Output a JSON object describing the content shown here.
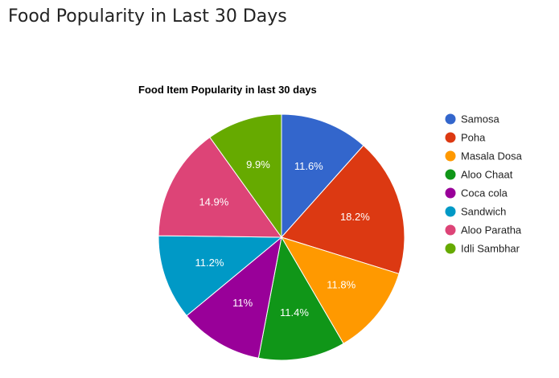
{
  "page": {
    "title": "Food Popularity in Last 30 Days"
  },
  "chart_data": {
    "type": "pie",
    "title": "Food Item Popularity in last 30 days",
    "legend_position": "right",
    "categories": [
      "Samosa",
      "Poha",
      "Masala Dosa",
      "Aloo Chaat",
      "Coca cola",
      "Sandwich",
      "Aloo Paratha",
      "Idli Sambhar"
    ],
    "values": [
      11.6,
      18.2,
      11.8,
      11.4,
      11,
      11.2,
      14.9,
      9.9
    ],
    "labels": [
      "11.6%",
      "18.2%",
      "11.8%",
      "11.4%",
      "11%",
      "11.2%",
      "14.9%",
      "9.9%"
    ],
    "colors": [
      "#3366cc",
      "#dc3912",
      "#ff9900",
      "#109618",
      "#990099",
      "#0099c6",
      "#dd4477",
      "#66aa00"
    ]
  }
}
